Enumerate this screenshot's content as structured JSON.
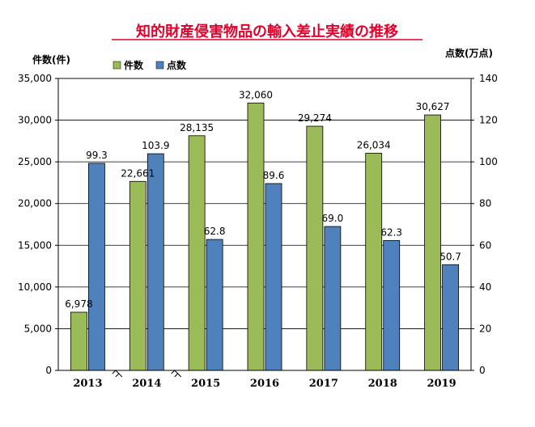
{
  "chart_data": {
    "type": "bar",
    "title": "知的財産侵害物品の輸入差止実績の推移",
    "left_axis_label": "件数(件)",
    "right_axis_label": "点数(万点)",
    "categories": [
      "2013",
      "2014",
      "2015",
      "2016",
      "2017",
      "2018",
      "2019"
    ],
    "series": [
      {
        "name": "件数",
        "axis": "left",
        "color": "#9bbb59",
        "values": [
          6978,
          22661,
          28135,
          32060,
          29274,
          26034,
          30627
        ],
        "labels": [
          "6,978",
          "22,661",
          "28,135",
          "32,060",
          "29,274",
          "26,034",
          "30,627"
        ]
      },
      {
        "name": "点数",
        "axis": "right",
        "color": "#4f81bd",
        "values": [
          99.3,
          103.9,
          62.8,
          89.6,
          69.0,
          62.3,
          50.7
        ],
        "labels": [
          "99.3",
          "103.9",
          "62.8",
          "89.6",
          "69.0",
          "62.3",
          "50.7"
        ]
      }
    ],
    "ylim_left": [
      0,
      35000
    ],
    "ylim_right": [
      0,
      140
    ],
    "left_ticks": [
      "0",
      "5,000",
      "10,000",
      "15,000",
      "20,000",
      "25,000",
      "30,000",
      "35,000"
    ],
    "right_ticks": [
      "0",
      "20",
      "40",
      "60",
      "80",
      "100",
      "120",
      "140"
    ],
    "grid": true,
    "legend_position": "top-left",
    "axis_break_between": [
      [
        "2013",
        "2014"
      ],
      [
        "2014",
        "2015"
      ]
    ]
  }
}
